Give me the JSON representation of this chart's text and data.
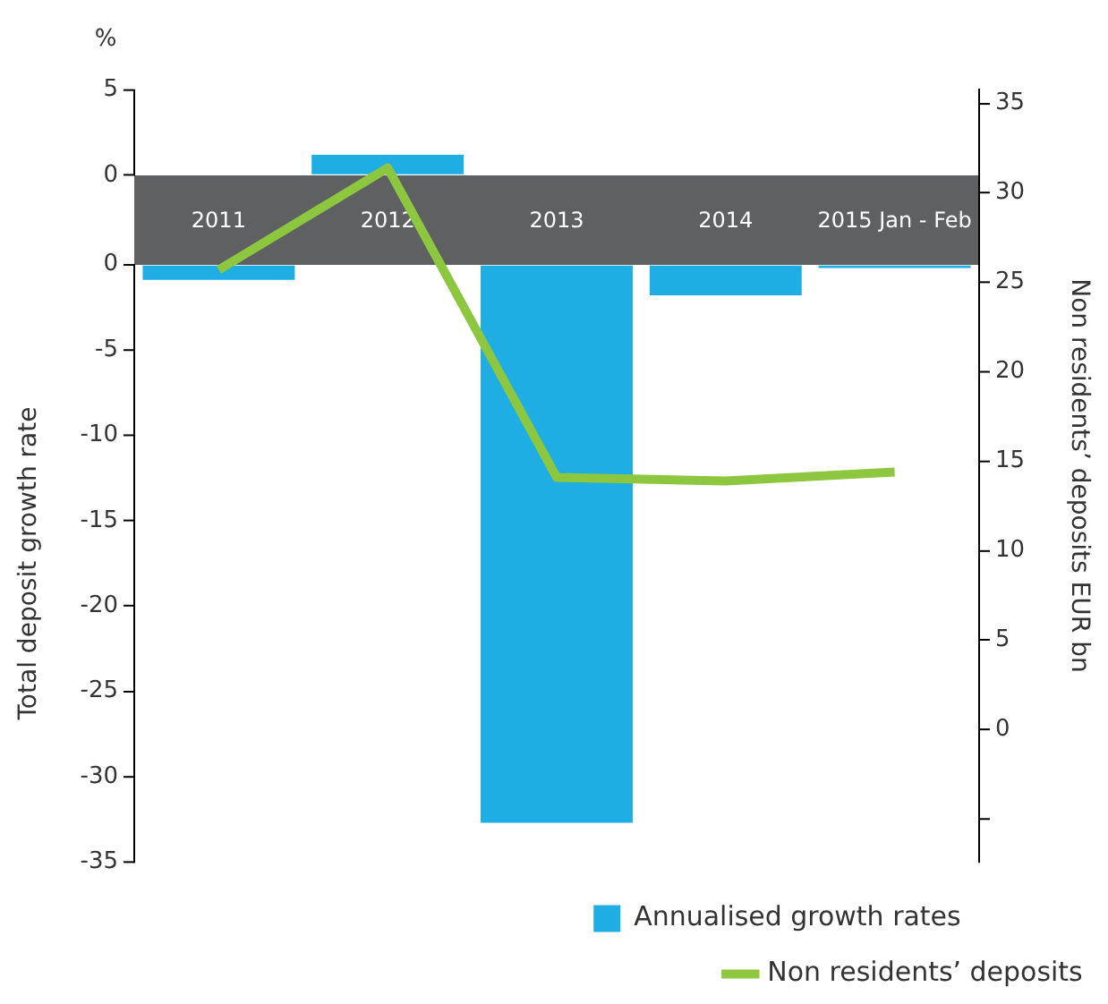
{
  "chart_data": [
    {
      "type": "bar",
      "annotations": [
        "%"
      ],
      "categories": [
        "2011",
        "2012",
        "2013",
        "2014",
        "2015 Jan - Feb"
      ],
      "series": [
        {
          "color": "#1eaee4",
          "values": [
            null,
            1.2,
            null,
            null,
            null
          ]
        }
      ],
      "ylim": [
        0,
        5
      ],
      "yticks": [
        5,
        0
      ],
      "grid": false
    },
    {
      "type": "bar",
      "ylabel": "Total deposit growth rate",
      "categories": [
        "2011",
        "2012",
        "2013",
        "2014",
        "2015 Jan - Feb"
      ],
      "series": [
        {
          "name": "Annualised growth rates",
          "color": "#1eaee4",
          "values": [
            -0.9,
            null,
            -32.7,
            -1.8,
            -0.2
          ]
        }
      ],
      "ylim": [
        -35,
        0
      ],
      "yticks": [
        0,
        -5,
        -10,
        -15,
        -20,
        -25,
        -30,
        -35
      ],
      "tick_labels": "y",
      "legend": "bottom right",
      "grid": false
    },
    {
      "type": "line",
      "y2label": "Non residents’ deposits EUR bn",
      "categories": [
        "2011",
        "2012",
        "2013",
        "2014",
        "2015 Jan - Feb"
      ],
      "series": [
        {
          "name": "Non residents’ deposits",
          "axis": "y2",
          "color": "#8dc63f",
          "values": [
            25.7,
            31.4,
            14.1,
            13.9,
            14.4
          ]
        }
      ],
      "y2lim": [
        -7.4,
        35.8
      ],
      "y2ticks": [
        {
          "value": -5,
          "label": null
        },
        0,
        5,
        10,
        15,
        20,
        25,
        30,
        35
      ],
      "tick_labels": "y",
      "legend": "bottom right",
      "grid": false
    }
  ]
}
